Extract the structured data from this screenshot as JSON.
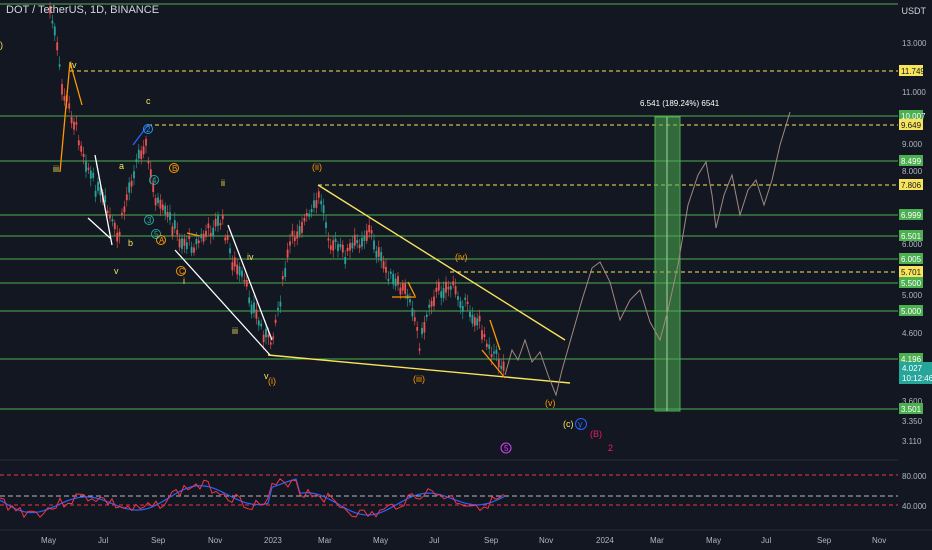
{
  "header": {
    "title": "DOT / TetherUS, 1D, BINANCE",
    "currency": "USDT"
  },
  "colors": {
    "bg": "#131722",
    "green": "#4caf50",
    "yellow": "#f7e45a",
    "orange": "#ff9800",
    "white": "#ffffff",
    "blue": "#2962ff",
    "red": "#f23645",
    "purple": "#e040fb"
  },
  "price_scale": {
    "ticks": [
      "13.000",
      "11.000",
      "9.000",
      "8.000",
      "6.000",
      "5.000",
      "4.600",
      "3.600",
      "3.350",
      "3.110",
      "80.000",
      "40.000"
    ],
    "green_level_tags": [
      "10.007",
      "8.499",
      "6.999",
      "6.501",
      "6.005",
      "5.500",
      "5.000",
      "4.196",
      "3.501"
    ],
    "yellow_level_tags": [
      "11.749",
      "9.649",
      "7.806",
      "5.701"
    ],
    "current_price": "4.027",
    "countdown": "10:12:46"
  },
  "time_axis": [
    "May",
    "Jul",
    "Sep",
    "Nov",
    "2023",
    "Mar",
    "May",
    "Jul",
    "Sep",
    "Nov",
    "2024",
    "Mar",
    "May",
    "Jul",
    "Sep",
    "Nov"
  ],
  "measure_label": "6.541 (189.24%) 6541",
  "wave_labels": {
    "iv_top": "iv",
    "c_top": "c",
    "iii_left": "iii",
    "a": "a",
    "b": "b",
    "v_small": "v",
    "ii_mid": "ii",
    "iv_mid": "iv",
    "i": "i",
    "iii_mid": "iii",
    "v_low": "v",
    "wave_i_paren": "(i)",
    "wave_ii_paren": "(ii)",
    "wave_iii_paren": "(iii)",
    "wave_iv_paren": "(iv)",
    "wave_v_paren": "(v)",
    "wave_c_paren": "(c)",
    "wave_y": "y",
    "wave_B_paren": "(B)",
    "wave_2": "2",
    "circled_2": "2",
    "circled_4": "4",
    "circled_3": "3",
    "circled_5": "5",
    "circled_A": "A",
    "circled_B": "B",
    "circled_C": "C",
    "circled_5_purple": "5",
    "left_edge": ")"
  }
}
